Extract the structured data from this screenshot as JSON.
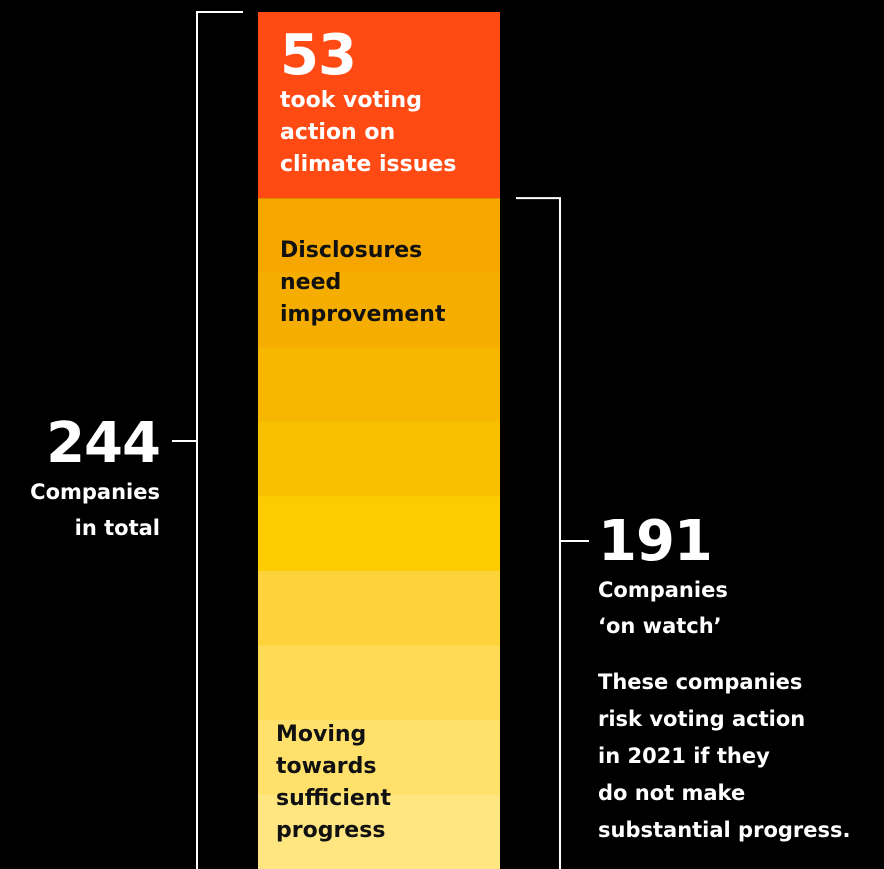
{
  "chart_data": {
    "type": "bar",
    "orientation": "stacked-vertical",
    "total": 244,
    "total_label": "Companies\nin total",
    "segments": [
      {
        "value": 53,
        "label": "took voting\naction on\nclimate issues",
        "color": "#FF4A14"
      },
      {
        "value": 191,
        "group_label": "Companies\n‘on watch’",
        "note": "These companies\nrisk voting action\nin 2021 if they\ndo not make\nsubstantial progress.",
        "gradient_bands": [
          "#F5A700",
          "#F5AE00",
          "#F7B600",
          "#F9C000",
          "#FCCB00",
          "#FDD23A",
          "#FEDA55",
          "#FEE06B",
          "#FFE681"
        ],
        "top_label": "Disclosures\nneed\nimprovement",
        "bottom_label": "Moving\ntowards\nsufficient\nprogress"
      }
    ]
  }
}
